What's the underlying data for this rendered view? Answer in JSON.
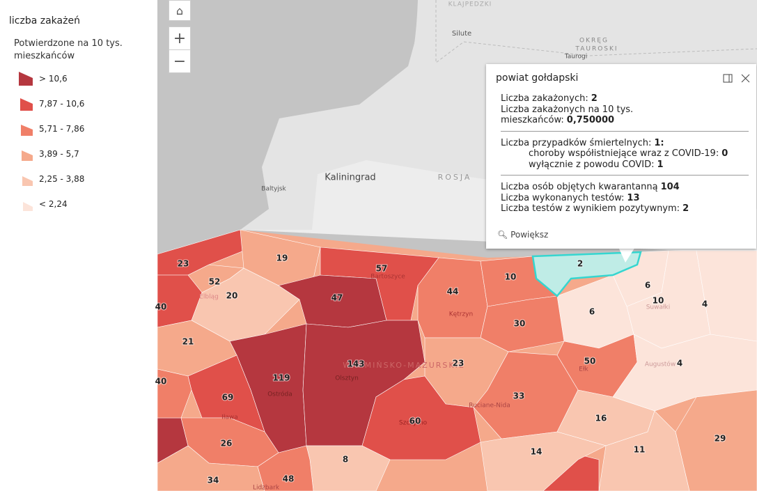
{
  "legend": {
    "title": "liczba zakażeń",
    "subtitle_lines": [
      "Potwierdzone na 10 tys.",
      "mieszkańców"
    ],
    "items": [
      {
        "label": "> 10,6",
        "color": "#b5373f"
      },
      {
        "label": "7,87 - 10,6",
        "color": "#e0504a"
      },
      {
        "label": "5,71 - 7,86",
        "color": "#f07f68"
      },
      {
        "label": "3,89 - 5,7",
        "color": "#f5a98b"
      },
      {
        "label": "2,25 - 3,88",
        "color": "#f9c6b0"
      },
      {
        "label": "< 2,24",
        "color": "#fce4da"
      }
    ]
  },
  "map": {
    "places": [
      "KLAJPEDZKI",
      "Silute",
      "OKRĘG",
      "TAUROSKI",
      "Taurogi",
      "Kaliningrad",
      "ROSJA",
      "Baltyjsk",
      "Bartoszyce",
      "Kętrzyn",
      "Elbląg",
      "Ostróda",
      "Iława",
      "Olsztyn",
      "Szczytno",
      "Ruciane-Nida",
      "Ełk",
      "Augustów",
      "Suwałki",
      "Lidzbark",
      "WARMIŃSKO-MAZURSKIE"
    ],
    "regions": [
      23,
      19,
      57,
      52,
      20,
      47,
      44,
      10,
      2,
      6,
      10,
      4,
      40,
      6,
      30,
      21,
      119,
      143,
      23,
      50,
      4,
      40,
      69,
      33,
      60,
      16,
      29,
      26,
      11,
      14,
      8,
      34,
      48
    ]
  },
  "popup": {
    "title": "powiat gołdapski",
    "sections": [
      [
        {
          "label": "Liczba zakażonych:",
          "value": "2"
        },
        {
          "label": "Liczba zakażonych na 10 tys. mieszkańców:",
          "value": "0,750000"
        }
      ],
      [
        {
          "label": "Liczba przypadków śmiertelnych:",
          "value": "1:"
        },
        {
          "label": "choroby współistniejące wraz z COVID-19:",
          "value": "0",
          "indent": true
        },
        {
          "label": "wyłącznie z powodu COVID:",
          "value": "1",
          "indent": true
        }
      ],
      [
        {
          "label": "Liczba osób objętych kwarantanną",
          "value": "104"
        },
        {
          "label": "Liczba wykonanych testów:",
          "value": "13"
        },
        {
          "label": "Liczba testów z wynikiem pozytywnym:",
          "value": "2"
        }
      ]
    ],
    "zoom": "Powiększ"
  }
}
